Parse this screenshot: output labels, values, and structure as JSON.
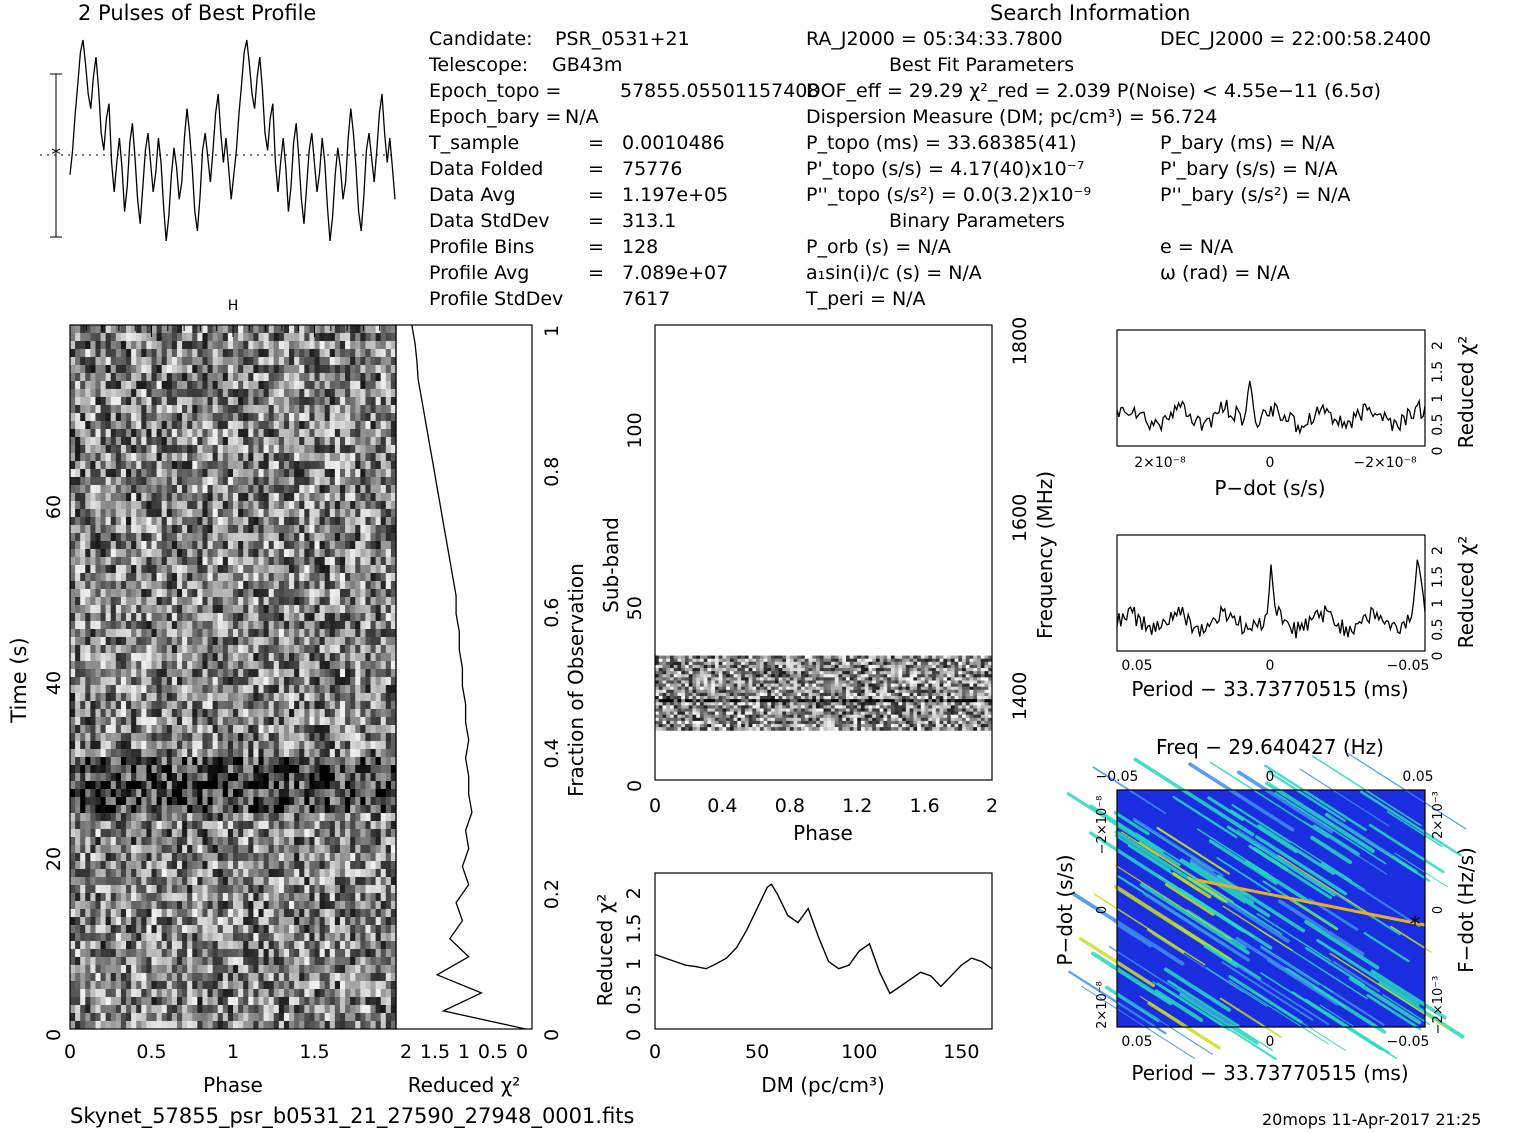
{
  "profile_title": "2 Pulses of Best Profile",
  "search_title": "Search Information",
  "info": [
    {
      "k": "Candidate:",
      "v": "PSR_0531+21"
    },
    {
      "k": "Telescope:",
      "v": "GB43m"
    },
    {
      "k": "Epoch_topo =",
      "v": "57855.05501157408"
    },
    {
      "k": "Epoch_bary =",
      "v": "N/A"
    },
    {
      "k": "T_sample",
      "v": "0.0010486"
    },
    {
      "k": "Data Folded",
      "v": "75776"
    },
    {
      "k": "Data Avg",
      "v": "1.197e+05"
    },
    {
      "k": "Data StdDev",
      "v": "313.1"
    },
    {
      "k": "Profile Bins",
      "v": "128"
    },
    {
      "k": "Profile Avg",
      "v": "7.089e+07"
    },
    {
      "k": "Profile StdDev",
      "v": "7617"
    }
  ],
  "ra": "RA_J2000 = 05:34:33.7800",
  "dec": "DEC_J2000 = 22:00:58.2400",
  "bestfit_title": "Best Fit Parameters",
  "dof": "DOF_eff = 29.29   χ²_red = 2.039   P(Noise) < 4.55e−11   (6.5σ)",
  "dm_line": "Dispersion Measure (DM; pc/cm³) = 56.724",
  "p_topo": "P_topo (ms) =  33.68385(41)",
  "pd_topo": "P'_topo (s/s) =  4.17(40)x10⁻⁷",
  "pdd_topo": "P''_topo (s/s²) = 0.0(3.2)x10⁻⁹",
  "p_bary": "P_bary (ms) = N/A",
  "pd_bary": "P'_bary (s/s) = N/A",
  "pdd_bary": "P''_bary (s/s²) = N/A",
  "binary_title": "Binary Parameters",
  "p_orb": "P_orb (s) = N/A",
  "a1": "a₁sin(i)/c (s) = N/A",
  "t_peri": "T_peri = N/A",
  "ecc": "e = N/A",
  "omega": "ω (rad) = N/A",
  "footer_file": "Skynet_57855_psr_b0531_21_27590_27948_0001.fits",
  "footer_stamp": "20mops 11-Apr-2017 21:25",
  "colors": {
    "axis": "#000000",
    "contour_low": "#1a2ee0",
    "contour_mid": "#27d9c0",
    "contour_high": "#d8e020"
  },
  "chart_data": [
    {
      "type": "line",
      "name": "pulse profile",
      "x_range": [
        0,
        2
      ],
      "values": [
        0.45,
        0.55,
        0.7,
        0.82,
        0.95,
        1.0,
        0.9,
        0.78,
        0.72,
        0.85,
        0.93,
        0.8,
        0.62,
        0.55,
        0.68,
        0.74,
        0.5,
        0.38,
        0.5,
        0.6,
        0.48,
        0.3,
        0.4,
        0.58,
        0.66,
        0.52,
        0.35,
        0.25,
        0.4,
        0.55,
        0.62,
        0.5,
        0.38,
        0.46,
        0.6,
        0.5,
        0.32,
        0.18,
        0.28,
        0.45,
        0.56,
        0.48,
        0.35,
        0.42,
        0.6,
        0.72,
        0.62,
        0.48,
        0.3,
        0.22,
        0.36,
        0.55,
        0.62,
        0.52,
        0.42,
        0.55,
        0.7,
        0.78,
        0.62,
        0.5,
        0.6,
        0.48,
        0.35,
        0.45,
        0.55,
        0.7,
        0.82,
        0.95,
        1.0,
        0.9,
        0.78,
        0.72,
        0.85,
        0.93,
        0.8,
        0.62,
        0.55,
        0.68,
        0.74,
        0.5,
        0.38,
        0.5,
        0.6,
        0.48,
        0.3,
        0.4,
        0.58,
        0.66,
        0.52,
        0.35,
        0.25,
        0.4,
        0.55,
        0.62,
        0.5,
        0.38,
        0.46,
        0.6,
        0.5,
        0.32,
        0.18,
        0.28,
        0.45,
        0.56,
        0.48,
        0.35,
        0.42,
        0.6,
        0.72,
        0.62,
        0.48,
        0.3,
        0.22,
        0.36,
        0.55,
        0.62,
        0.52,
        0.42,
        0.55,
        0.7,
        0.78,
        0.62,
        0.5,
        0.6,
        0.48,
        0.35
      ]
    },
    {
      "type": "heatmap",
      "name": "time vs phase",
      "xlabel": "Phase",
      "ylabel": "Time (s)",
      "x_ticks": [
        "0",
        "0.5",
        "1",
        "1.5"
      ],
      "y_ticks": [
        "0",
        "20",
        "40",
        "60"
      ],
      "xlim": [
        0,
        2
      ],
      "ylim": [
        0,
        80
      ]
    },
    {
      "type": "line",
      "name": "time reduced chi2",
      "xlabel": "Reduced χ²",
      "ylabel": "Fraction of Observation",
      "x_ticks": [
        "2",
        "1.5",
        "1",
        "0.5",
        "0"
      ],
      "y_ticks": [
        "0",
        "0.2",
        "0.4",
        "0.6",
        "0.8",
        "1"
      ],
      "chi2": [
        0.1,
        1.4,
        0.8,
        1.5,
        1.0,
        1.3,
        1.1,
        1.2,
        1.0,
        1.1,
        1.0,
        1.05,
        0.95,
        1.0,
        1.0,
        1.05,
        1.0,
        1.05,
        1.05,
        1.1,
        1.1,
        1.15,
        1.15,
        1.2,
        1.2,
        1.25,
        1.3,
        1.35,
        1.4,
        1.45,
        1.5,
        1.55,
        1.6,
        1.65,
        1.7,
        1.75,
        1.8,
        1.82,
        1.85,
        1.9
      ]
    },
    {
      "type": "heatmap",
      "name": "sub-band vs phase",
      "xlabel": "Phase",
      "ylabel": "Sub-band",
      "y2label": "Frequency (MHz)",
      "x_ticks": [
        "0",
        "0.4",
        "0.8",
        "1.2",
        "1.6",
        "2"
      ],
      "y_ticks": [
        "0",
        "50",
        "100"
      ],
      "y2_ticks": [
        "1400",
        "1600",
        "1800"
      ],
      "xlim": [
        0,
        2
      ],
      "ylim": [
        0,
        128
      ],
      "band_rows": [
        14,
        35
      ]
    },
    {
      "type": "line",
      "name": "DM vs reduced chi2",
      "xlabel": "DM (pc/cm³)",
      "ylabel": "Reduced χ²",
      "x_ticks": [
        "0",
        "50",
        "100",
        "150"
      ],
      "y_ticks": [
        "0",
        "0.5",
        "1",
        "1.5",
        "2"
      ],
      "xlim": [
        0,
        165
      ],
      "ylim": [
        0,
        2.2
      ],
      "x": [
        0,
        5,
        10,
        15,
        20,
        25,
        30,
        35,
        40,
        45,
        50,
        55,
        57,
        60,
        65,
        70,
        75,
        80,
        85,
        90,
        95,
        100,
        105,
        110,
        115,
        120,
        125,
        130,
        135,
        140,
        145,
        150,
        155,
        160,
        165
      ],
      "y": [
        1.05,
        1.0,
        0.95,
        0.9,
        0.88,
        0.85,
        0.92,
        1.0,
        1.15,
        1.4,
        1.7,
        2.0,
        2.04,
        1.9,
        1.6,
        1.5,
        1.7,
        1.3,
        0.95,
        0.85,
        0.9,
        1.1,
        1.2,
        0.8,
        0.5,
        0.6,
        0.7,
        0.8,
        0.75,
        0.6,
        0.75,
        0.9,
        1.0,
        0.95,
        0.85
      ]
    },
    {
      "type": "line",
      "name": "P-dot vs reduced chi2",
      "xlabel": "P−dot (s/s)",
      "ylabel": "Reduced χ²",
      "x_ticks": [
        "2×10⁻⁸",
        "0",
        "−2×10⁻⁸"
      ],
      "y_ticks": [
        "0",
        "0.5",
        "1",
        "1.5",
        "2"
      ],
      "ylim": [
        0,
        2.2
      ]
    },
    {
      "type": "line",
      "name": "Period vs reduced chi2",
      "xlabel": "Period − 33.73770515 (ms)",
      "ylabel": "Reduced χ²",
      "x_ticks": [
        "0.05",
        "0",
        "−0.05"
      ],
      "y_ticks": [
        "0",
        "0.5",
        "1",
        "1.5",
        "2"
      ],
      "ylim": [
        0,
        2.2
      ]
    },
    {
      "type": "heatmap",
      "name": "P-Pdot plane",
      "title": "Freq − 29.640427 (Hz)",
      "xlabel": "Period − 33.73770515 (ms)",
      "ylabel": "P−dot (s/s)",
      "y2label": "F−dot (Hz/s)",
      "x_ticks": [
        "0.05",
        "0",
        "−0.05"
      ],
      "x2_ticks": [
        "−0.05",
        "0",
        "0.05"
      ],
      "y_ticks": [
        "−2×10⁻⁸",
        "0",
        "2×10⁻⁸"
      ],
      "y2_ticks": [
        "2×10⁻³",
        "0",
        "−2×10⁻³"
      ]
    }
  ]
}
